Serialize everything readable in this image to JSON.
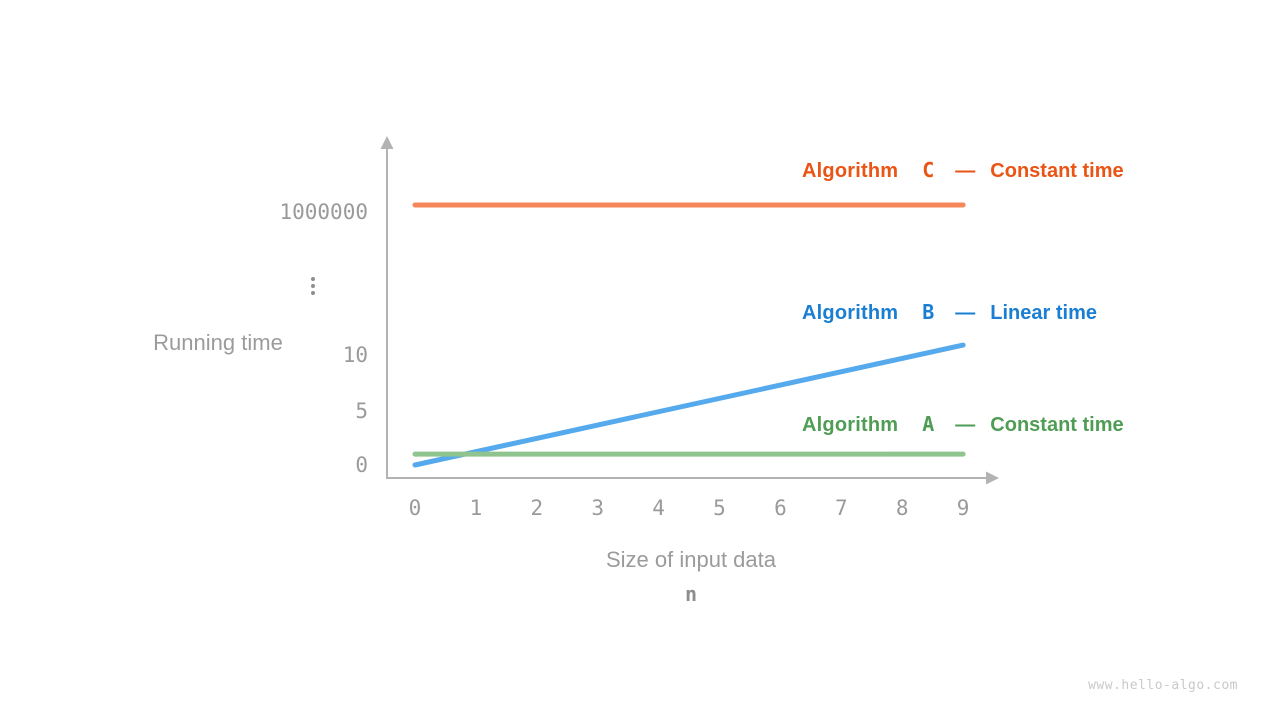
{
  "page": {
    "watermark": "www.hello-algo.com",
    "background": "#FFFFFF"
  },
  "chart_data": {
    "type": "line",
    "title": "",
    "x_axis": {
      "title": "Size of input data",
      "variable": "n",
      "ticks": [
        "0",
        "1",
        "2",
        "3",
        "4",
        "5",
        "6",
        "7",
        "8",
        "9"
      ],
      "range": [
        0,
        9
      ]
    },
    "y_axis": {
      "title": "Running time",
      "ticks_bottom_to_top": [
        "0",
        "5",
        "10",
        "⋮",
        "1000000"
      ],
      "broken_scale": true,
      "range_low_segment": [
        0,
        12
      ],
      "top_value": 1000000
    },
    "grid": false,
    "legend_position": "inline-right",
    "series": [
      {
        "id": "C",
        "legend_prefix": "Algorithm",
        "legend_letter": "C",
        "legend_dash": "—",
        "legend_desc": "Constant time",
        "complexity": "constant",
        "text_color": "#EA5414",
        "line_color": "#F5875A",
        "x": [
          0,
          9
        ],
        "values": [
          1000000,
          1000000
        ]
      },
      {
        "id": "B",
        "legend_prefix": "Algorithm",
        "legend_letter": "B",
        "legend_dash": "—",
        "legend_desc": "Linear time",
        "complexity": "linear",
        "text_color": "#1A7FD3",
        "line_color": "#55A9ED",
        "x": [
          0,
          9
        ],
        "values": [
          0,
          11
        ]
      },
      {
        "id": "A",
        "legend_prefix": "Algorithm",
        "legend_letter": "A",
        "legend_dash": "—",
        "legend_desc": "Constant time",
        "complexity": "constant",
        "text_color": "#4F9D55",
        "line_color": "#90C48E",
        "x": [
          0,
          9
        ],
        "values": [
          1,
          1
        ]
      }
    ]
  },
  "colors": {
    "axis": "#B3B3B3",
    "tick_text": "#9A9A9A",
    "axis_title_text": "#9B9B9B",
    "watermark": "#C9C9C9"
  }
}
